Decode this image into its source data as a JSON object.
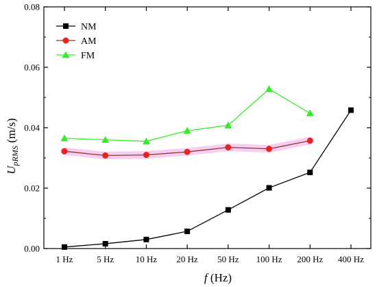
{
  "chart_data": {
    "type": "line",
    "categories": [
      "1 Hz",
      "5 Hz",
      "10 Hz",
      "20 Hz",
      "50 Hz",
      "100 Hz",
      "200 Hz",
      "400 Hz"
    ],
    "xlabel_italic": "f",
    "xlabel_unit": " (Hz)",
    "ylabel_main": "U",
    "ylabel_sub": "pRMS",
    "ylabel_unit": " (m/s)",
    "ylim": [
      0,
      0.08
    ],
    "yticks": [
      "0.00",
      "0.02",
      "0.04",
      "0.06",
      "0.08"
    ],
    "grid": false,
    "legend_position": "top-left",
    "series": [
      {
        "name": "NM",
        "color": "#000000",
        "marker": "square",
        "values": [
          0.0005,
          0.0016,
          0.003,
          0.0057,
          0.0128,
          0.0201,
          0.0252,
          0.0458
        ]
      },
      {
        "name": "AM",
        "color": "#e8241c",
        "line_color": "#8b3a2a",
        "marker": "circle",
        "values": [
          0.0322,
          0.0308,
          0.031,
          0.032,
          0.0335,
          0.033,
          0.0357,
          null
        ]
      },
      {
        "name": "FM",
        "color": "#33ee22",
        "marker": "triangle",
        "values": [
          0.0365,
          0.036,
          0.0355,
          0.039,
          0.0408,
          0.0528,
          0.0448,
          null
        ]
      }
    ]
  }
}
